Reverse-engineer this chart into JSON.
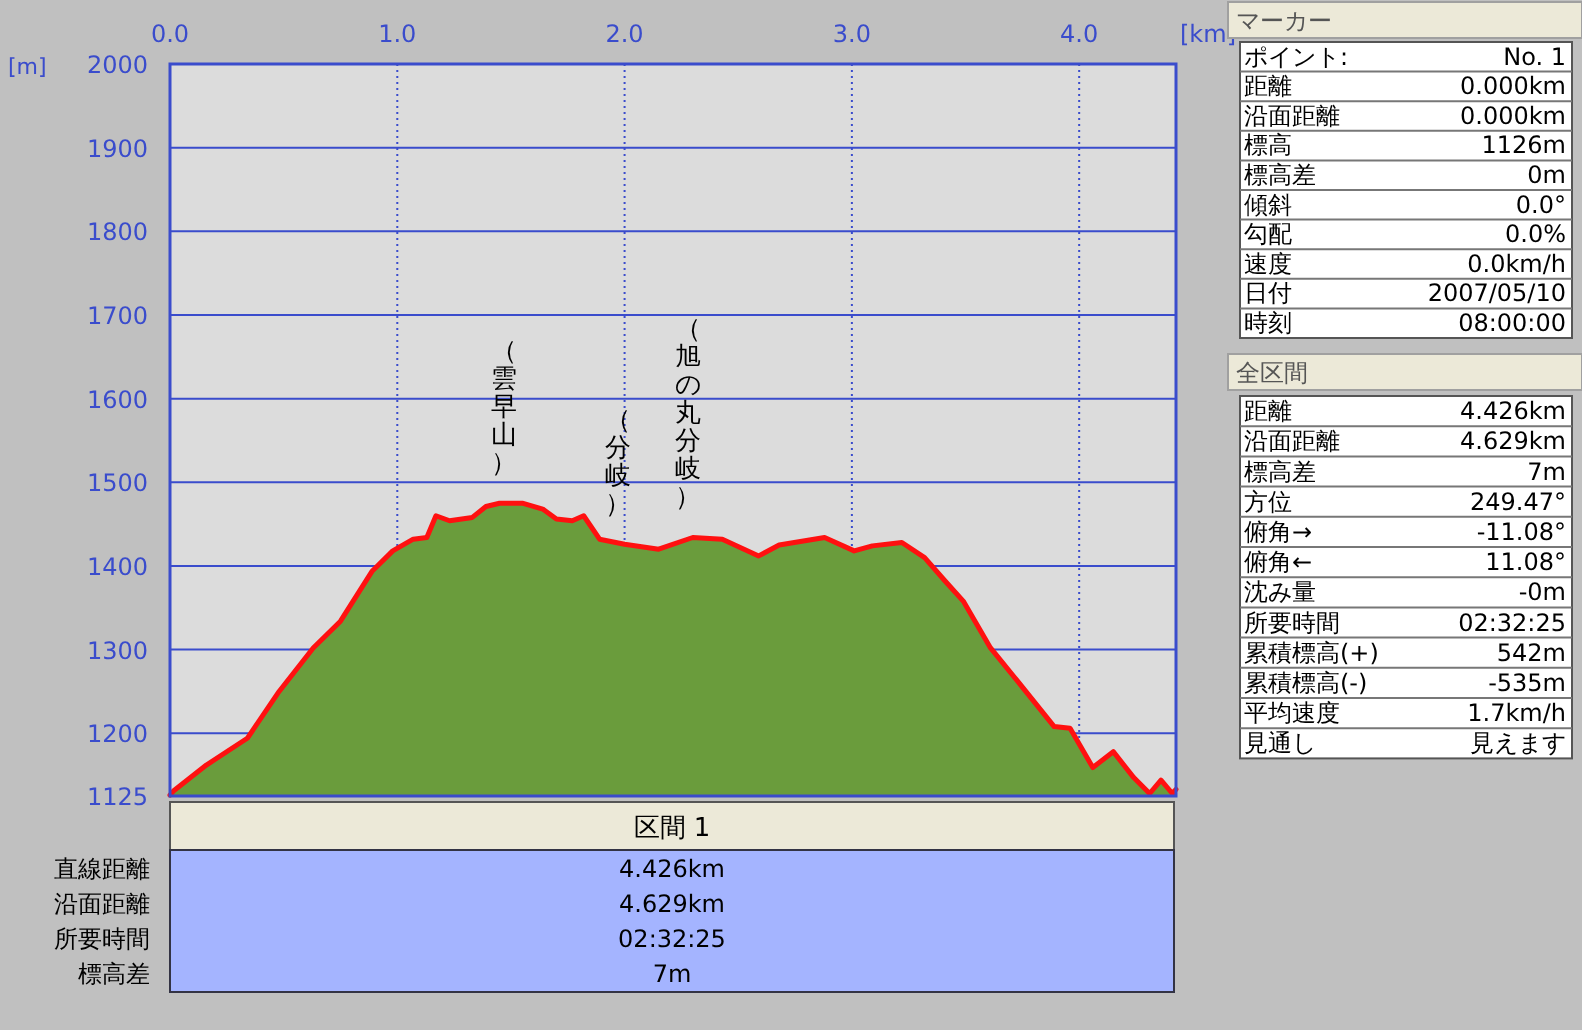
{
  "chart_data": [
    {
      "type": "area",
      "xlabel": "[km]",
      "ylabel": "[m]",
      "xlim": [
        0,
        4.426
      ],
      "ylim": [
        1125,
        2000
      ],
      "xticks": [
        {
          "value": 0,
          "label": "0.0"
        },
        {
          "value": 1,
          "label": "1.0"
        },
        {
          "value": 2,
          "label": "2.0"
        },
        {
          "value": 3,
          "label": "3.0"
        },
        {
          "value": 4,
          "label": "4.0"
        }
      ],
      "yticks": [
        1125,
        1200,
        1300,
        1400,
        1500,
        1600,
        1700,
        1800,
        1900,
        2000
      ],
      "grid": true,
      "series": [
        {
          "color": "#6a9c3c",
          "x": [
            0,
            0.015,
            0.16,
            0.34,
            0.48,
            0.63,
            0.75,
            0.89,
            0.98,
            1.07,
            1.13,
            1.17,
            1.23,
            1.33,
            1.39,
            1.45,
            1.55,
            1.64,
            1.7,
            1.77,
            1.82,
            1.89,
            2.0,
            2.15,
            2.3,
            2.43,
            2.59,
            2.68,
            2.88,
            3.01,
            3.09,
            3.22,
            3.32,
            3.41,
            3.49,
            3.61,
            3.73,
            3.89,
            3.96,
            4.06,
            4.15,
            4.24,
            4.31,
            4.36,
            4.41,
            4.426
          ],
          "values": [
            1126,
            1131,
            1162,
            1194,
            1250,
            1302,
            1334,
            1394,
            1418,
            1432,
            1434,
            1460,
            1454,
            1458,
            1471,
            1475,
            1475,
            1468,
            1456,
            1454,
            1460,
            1432,
            1426,
            1420,
            1434,
            1432,
            1412,
            1425,
            1434,
            1418,
            1424,
            1428,
            1410,
            1382,
            1358,
            1302,
            1262,
            1208,
            1206,
            1159,
            1178,
            1147,
            1128,
            1144,
            1128,
            1133
          ]
        }
      ],
      "annotations": [
        {
          "text": "（雲早山）",
          "x": 1.47,
          "y": 1475
        },
        {
          "text": "（分岐）",
          "x": 1.97,
          "y": 1426
        },
        {
          "text": "（旭の丸分岐）",
          "x": 2.28,
          "y": 1434
        }
      ]
    },
    {
      "type": "other",
      "title": "マーカー",
      "annotations": [
        "ポイント:",
        "No. 1",
        "距離",
        "0.000km",
        "沿面距離",
        "0.000km",
        "標高",
        "1126m",
        "標高差",
        "0m",
        "傾斜",
        "0.0°",
        "勾配",
        "0.0%",
        "速度",
        "0.0km/h",
        "日付",
        "2007/05/10",
        "時刻",
        "08:00:00"
      ]
    },
    {
      "type": "other",
      "title": "全区間",
      "annotations": [
        "距離",
        "4.426km",
        "沿面距離",
        "4.629km",
        "標高差",
        "7m",
        "方位",
        "249.47°",
        "俯角→",
        "-11.08°",
        "俯角←",
        "11.08°",
        "沈み量",
        "-0m",
        "所要時間",
        "02:32:25",
        "累積標高(+)",
        "542m",
        "累積標高(-)",
        "-535m",
        "平均速度",
        "1.7km/h",
        "見通し",
        "見えます"
      ]
    },
    {
      "type": "other",
      "title": "区間 1",
      "annotations": [
        "直線距離",
        "4.426km",
        "沿面距離",
        "4.629km",
        "所要時間",
        "02:32:25",
        "標高差",
        "7m"
      ]
    }
  ]
}
